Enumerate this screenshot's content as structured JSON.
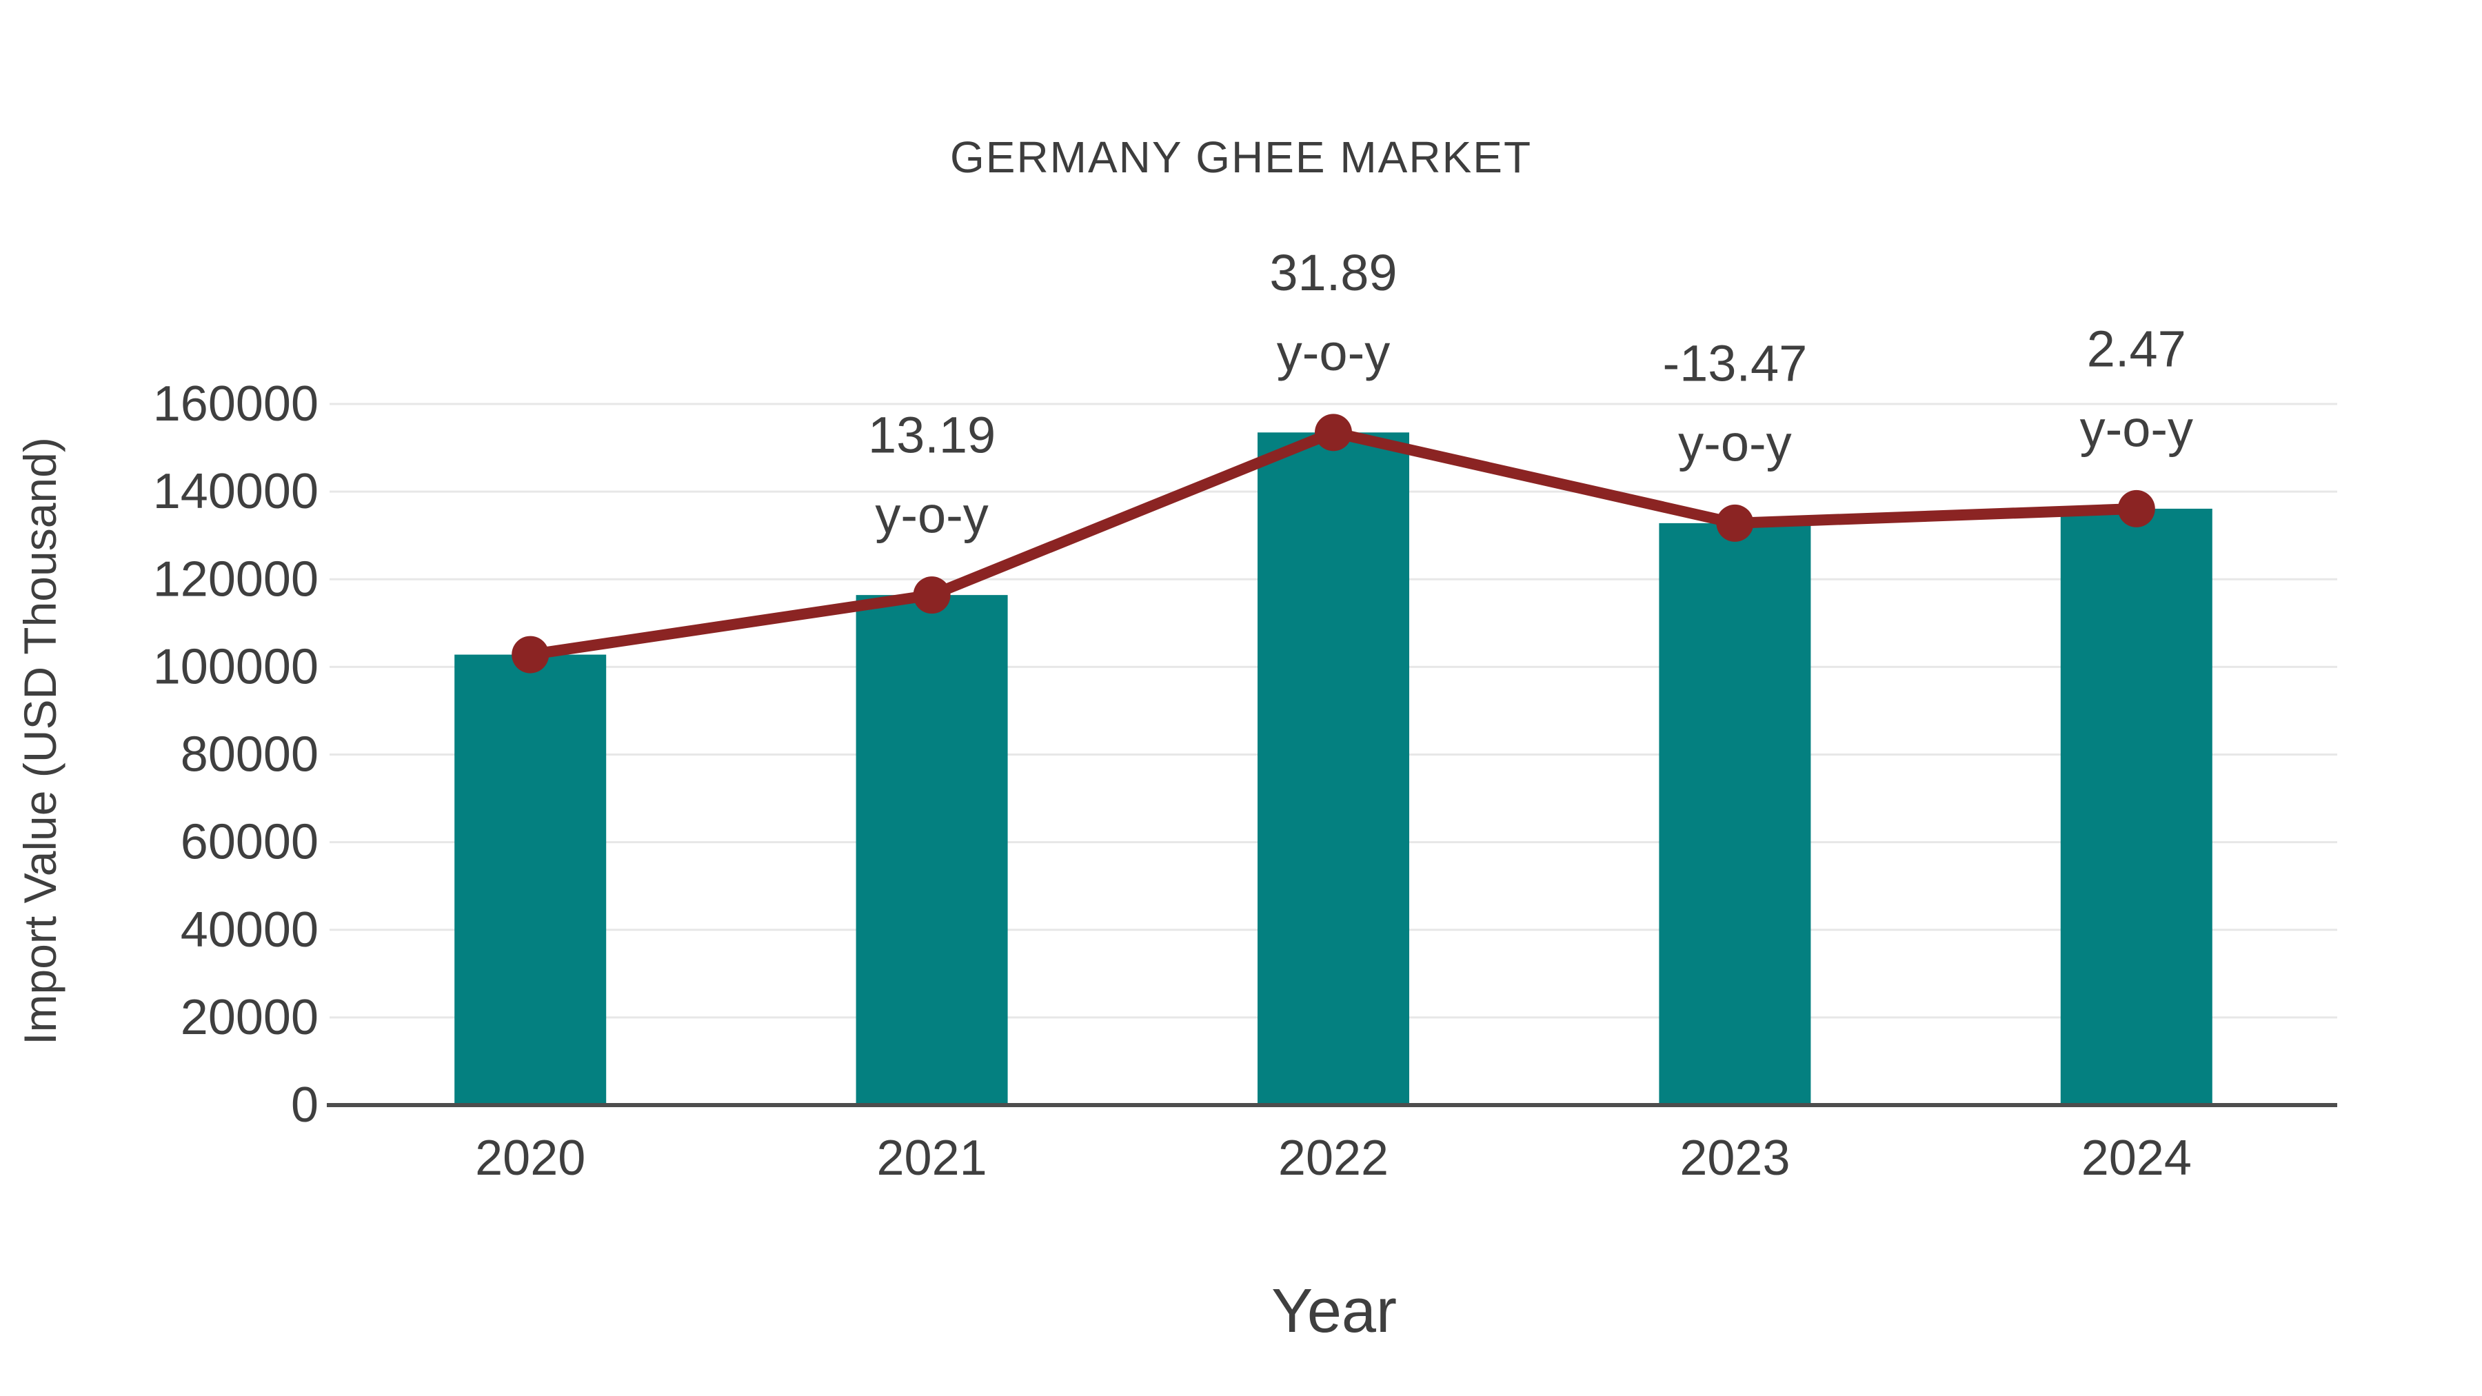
{
  "chart_data": {
    "type": "bar",
    "title": "GERMANY GHEE MARKET",
    "xlabel": "Year",
    "ylabel": "Import Value (USD Thousand)",
    "categories": [
      "2020",
      "2021",
      "2022",
      "2023",
      "2024"
    ],
    "series": [
      {
        "name": "Import Value (USD Thousand)",
        "type": "bar",
        "color": "#048080",
        "values": [
          102800,
          116400,
          153500,
          132800,
          136100
        ]
      },
      {
        "name": "y-o-y growth",
        "type": "line",
        "color": "#8b2423",
        "values": [
          102800,
          116400,
          153500,
          132800,
          136100
        ],
        "labels_percent": [
          null,
          13.19,
          31.89,
          -13.47,
          2.47
        ]
      }
    ],
    "annotations": [
      {
        "category": "2021",
        "value": "13.19",
        "suffix": "y-o-y"
      },
      {
        "category": "2022",
        "value": "31.89",
        "suffix": "y-o-y"
      },
      {
        "category": "2023",
        "value": "-13.47",
        "suffix": "y-o-y"
      },
      {
        "category": "2024",
        "value": "2.47",
        "suffix": "y-o-y"
      }
    ],
    "ylim": [
      0,
      160000
    ],
    "yticks": [
      0,
      20000,
      40000,
      60000,
      80000,
      100000,
      120000,
      140000,
      160000
    ],
    "grid": true,
    "legend": "none",
    "colors": {
      "bar": "#048080",
      "line": "#8b2423",
      "grid": "#e7e7e7",
      "axis": "#4d4d4d",
      "text": "#3f3f3f"
    }
  }
}
